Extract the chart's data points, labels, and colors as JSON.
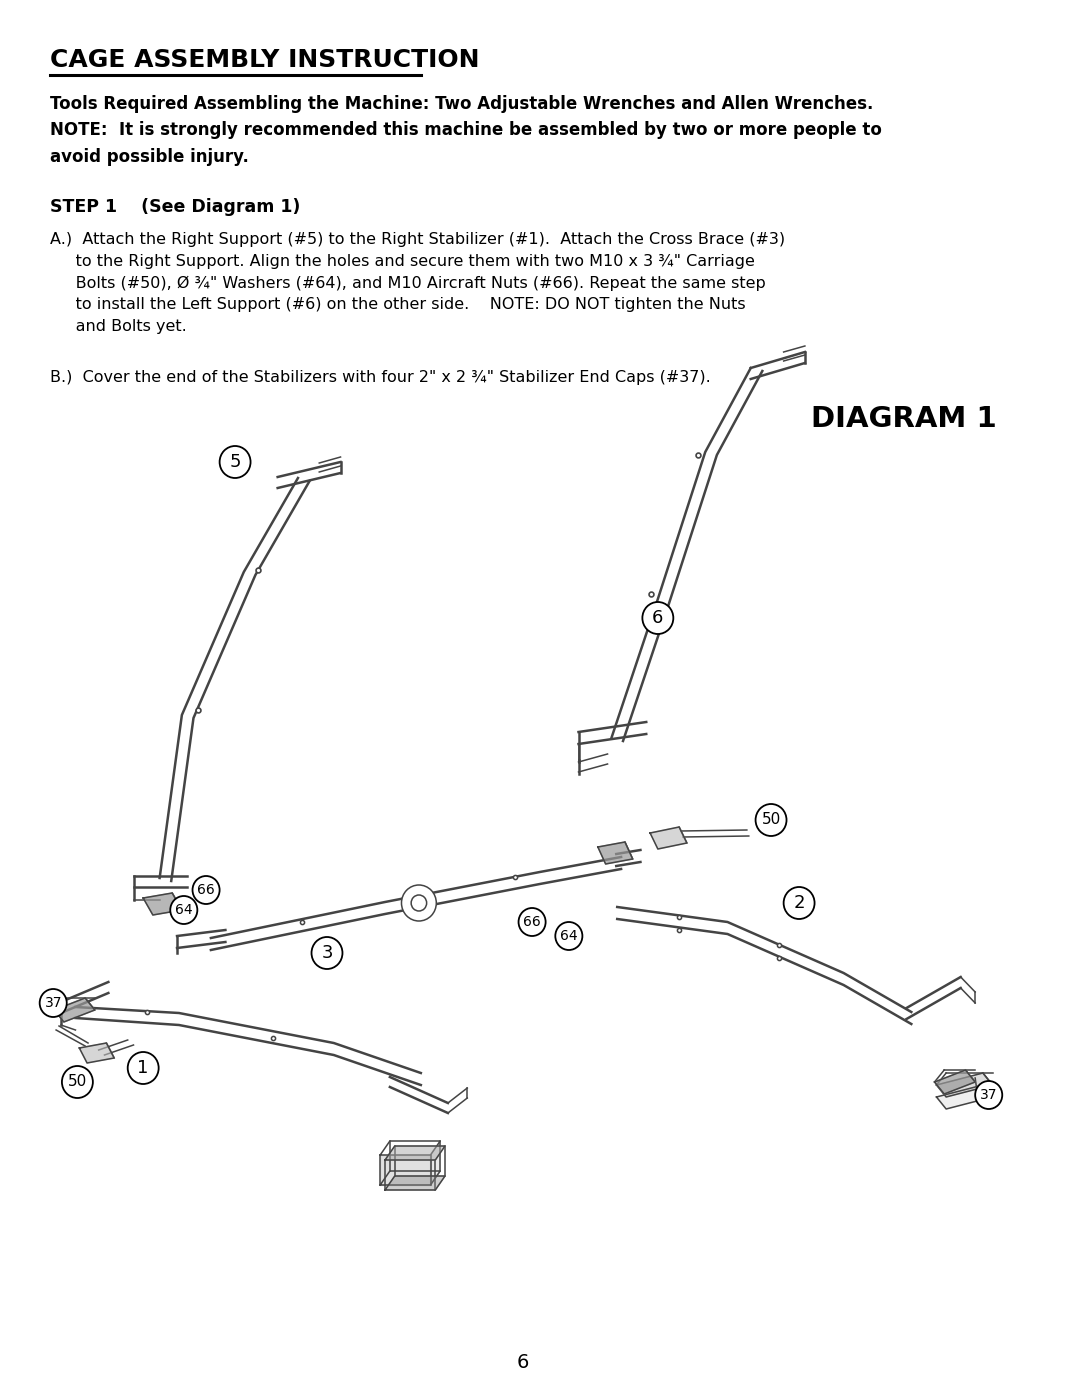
{
  "title": "CAGE ASSEMBLY INSTRUCTION",
  "tools_text": "Tools Required Assembling the Machine: Two Adjustable Wrenches and Allen Wrenches.\nNOTE:  It is strongly recommended this machine be assembled by two or more people to\navoid possible injury.",
  "step_text": "STEP 1    (See Diagram 1)",
  "instruction_a": "A.)  Attach the Right Support (#5) to the Right Stabilizer (#1).  Attach the Cross Brace (#3)\n     to the Right Support. Align the holes and secure them with two M10 x 3 ¾\" Carriage\n     Bolts (#50), Ø ¾\" Washers (#64), and M10 Aircraft Nuts (#66). Repeat the same step\n     to install the Left Support (#6) on the other side.    NOTE: DO NOT tighten the Nuts\n     and Bolts yet.",
  "instruction_b": "B.)  Cover the end of the Stabilizers with four 2\" x 2 ¾\" Stabilizer End Caps (#37).",
  "diagram_title": "DIAGRAM 1",
  "page_number": "6",
  "bg_color": "#ffffff",
  "text_color": "#000000",
  "line_color": "#444444",
  "diagram_line_color": "#444444"
}
